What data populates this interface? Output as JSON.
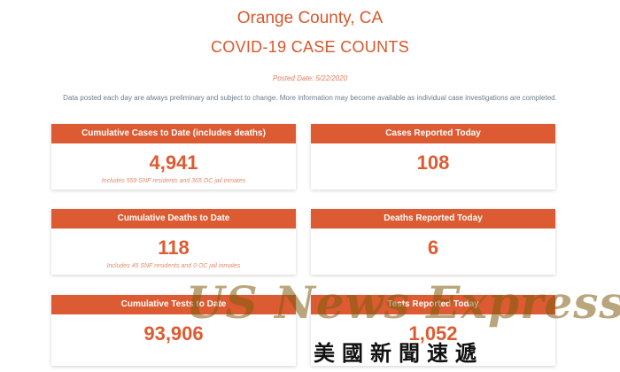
{
  "header": {
    "location": "Orange County, CA",
    "title": "COVID-19 CASE COUNTS",
    "posted_date": "Posted Date: 5/22/2020",
    "note": "Data posted each day are always preliminary and subject to change. More information may become available as individual case investigations are completed."
  },
  "cards": [
    {
      "title": "Cumulative Cases to Date (includes deaths)",
      "value": "4,941",
      "sub": "Includes 559 SNF residents and 365 OC jail inmates"
    },
    {
      "title": "Cases Reported Today",
      "value": "108",
      "sub": ""
    },
    {
      "title": "Cumulative Deaths to Date",
      "value": "118",
      "sub": "Includes 45 SNF residents and 0 OC jail inmates"
    },
    {
      "title": "Deaths Reported Today",
      "value": "6",
      "sub": ""
    },
    {
      "title": "Cumulative Tests to Date",
      "value": "93,906",
      "sub": ""
    },
    {
      "title": "Tests Reported Today",
      "value": "1,052",
      "sub": ""
    }
  ],
  "watermark": {
    "text": "US News Express",
    "cjk": "美國新聞速遞"
  },
  "colors": {
    "accent": "#dd5b32",
    "note_text": "#6b7b8c"
  }
}
